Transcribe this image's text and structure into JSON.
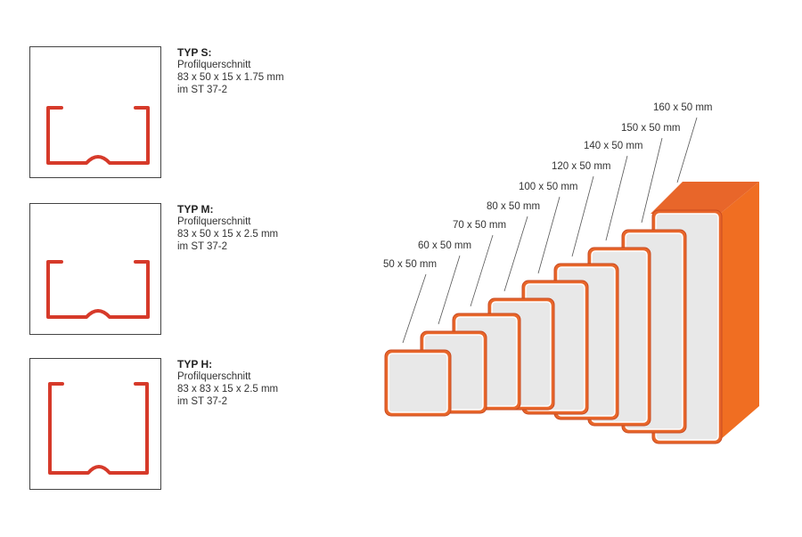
{
  "profiles": [
    {
      "title": "TYP S:",
      "line1": "Profilquerschnitt",
      "line2": "83 x 50 x 15 x 1.75 mm",
      "line3": "im ST 37-2"
    },
    {
      "title": "TYP M:",
      "line1": "Profilquerschnitt",
      "line2": "83 x 50 x 15 x 2.5 mm",
      "line3": "im ST 37-2"
    },
    {
      "title": "TYP H:",
      "line1": "Profilquerschnitt",
      "line2": "83 x 83 x 15 x 2.5 mm",
      "line3": "im ST 37-2"
    }
  ],
  "sizes": [
    "50 x 50 mm",
    "60 x 50 mm",
    "70 x 50 mm",
    "80 x 50 mm",
    "100 x 50 mm",
    "120 x 50 mm",
    "140 x 50 mm",
    "150 x 50 mm",
    "160 x 50 mm"
  ],
  "colors": {
    "profile_red": "#d63a2a",
    "block_orange": "#e8662a",
    "block_side": "#f06e22",
    "block_face": "#e8e8e8",
    "block_border": "#c94a20"
  }
}
